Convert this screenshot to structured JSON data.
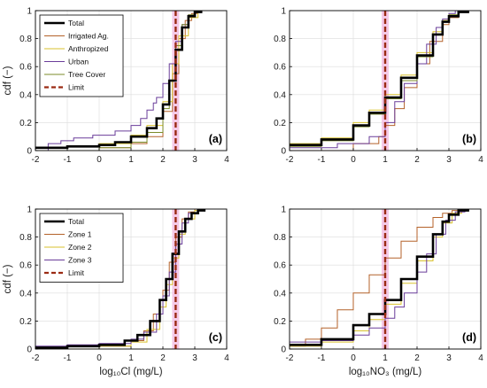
{
  "colors": {
    "total": "#000000",
    "irrigated": "#b4622a",
    "anthropized": "#d9c22e",
    "urban": "#6a3d9a",
    "tree": "#7b8b2a",
    "zone1": "#b4622a",
    "zone2": "#d9c22e",
    "zone3": "#6a3d9a",
    "limit": "#9b2b14",
    "limit_band": "#f2b8e0"
  },
  "chart_data": [
    {
      "type": "line",
      "panel_label": "(a)",
      "xlabel": "",
      "ylabel": "cdf (−)",
      "xlim": [
        -2,
        4
      ],
      "ylim": [
        0,
        1
      ],
      "xticks": [
        "-2",
        "-1",
        "0",
        "1",
        "2",
        "3",
        "4"
      ],
      "yticks": [
        "0",
        "0.2",
        "0.4",
        "0.6",
        "0.8",
        "1"
      ],
      "grid": true,
      "legend": "top-left",
      "limit": 2.4,
      "series": [
        {
          "name": "Total",
          "key": "total",
          "width": 2.6,
          "x": [
            -2,
            -1,
            0,
            0.5,
            1,
            1.5,
            1.8,
            2.0,
            2.2,
            2.4,
            2.6,
            2.8,
            3.0,
            3.2
          ],
          "y": [
            0.02,
            0.03,
            0.04,
            0.06,
            0.1,
            0.16,
            0.23,
            0.33,
            0.5,
            0.72,
            0.88,
            0.96,
            0.99,
            1.0
          ]
        },
        {
          "name": "Irrigated Ag.",
          "key": "irrigated",
          "width": 1.0,
          "x": [
            -2,
            0,
            1,
            1.5,
            2.0,
            2.3,
            2.5,
            2.7,
            2.9,
            3.1
          ],
          "y": [
            0.0,
            0.02,
            0.05,
            0.1,
            0.28,
            0.55,
            0.8,
            0.93,
            0.98,
            1.0
          ]
        },
        {
          "name": "Anthropized",
          "key": "anthropized",
          "width": 1.0,
          "x": [
            -2,
            -1,
            0,
            1,
            1.5,
            2.0,
            2.3,
            2.5,
            2.8,
            3.1
          ],
          "y": [
            0.02,
            0.03,
            0.05,
            0.11,
            0.18,
            0.35,
            0.62,
            0.82,
            0.95,
            1.0
          ]
        },
        {
          "name": "Urban",
          "key": "urban",
          "width": 1.0,
          "x": [
            -2,
            -1.6,
            -1.2,
            -0.8,
            -0.2,
            0.5,
            1.0,
            1.3,
            1.5,
            1.7,
            1.8,
            2.0,
            2.2,
            2.4,
            2.6,
            2.8,
            3.0
          ],
          "y": [
            0.0,
            0.05,
            0.07,
            0.09,
            0.11,
            0.14,
            0.18,
            0.23,
            0.29,
            0.34,
            0.38,
            0.48,
            0.62,
            0.78,
            0.9,
            0.97,
            1.0
          ]
        },
        {
          "name": "Tree Cover",
          "key": "tree",
          "width": 1.0,
          "x": [
            -2,
            0,
            1,
            1.5,
            2.0,
            2.2,
            2.4,
            2.6,
            2.8,
            3.0
          ],
          "y": [
            0.0,
            0.02,
            0.06,
            0.13,
            0.3,
            0.5,
            0.75,
            0.9,
            0.97,
            1.0
          ]
        }
      ]
    },
    {
      "type": "line",
      "panel_label": "(b)",
      "xlabel": "",
      "ylabel": "",
      "xlim": [
        -2,
        4
      ],
      "ylim": [
        0,
        1
      ],
      "xticks": [
        "-2",
        "-1",
        "0",
        "1",
        "2",
        "3",
        "4"
      ],
      "yticks": [
        "0",
        "0.2",
        "0.4",
        "0.6",
        "0.8",
        "1"
      ],
      "grid": true,
      "legend": "",
      "limit": 1.0,
      "series": [
        {
          "name": "Total",
          "key": "total",
          "width": 2.6,
          "x": [
            -2,
            -1,
            0,
            0.5,
            1.0,
            1.5,
            2.0,
            2.5,
            2.8,
            3.0,
            3.3,
            3.6
          ],
          "y": [
            0.04,
            0.08,
            0.18,
            0.27,
            0.38,
            0.52,
            0.68,
            0.83,
            0.92,
            0.96,
            0.99,
            1.0
          ]
        },
        {
          "name": "Irrigated Ag.",
          "key": "irrigated",
          "width": 1.0,
          "x": [
            -2,
            0,
            0.8,
            1.0,
            1.3,
            1.6,
            2.0,
            2.4,
            2.8,
            3.0,
            3.3,
            3.6
          ],
          "y": [
            0.0,
            0.05,
            0.1,
            0.18,
            0.3,
            0.45,
            0.62,
            0.78,
            0.9,
            0.95,
            0.99,
            1.0
          ]
        },
        {
          "name": "Anthropized",
          "key": "anthropized",
          "width": 1.0,
          "x": [
            -2,
            -1,
            0,
            0.5,
            1.0,
            1.5,
            2.0,
            2.5,
            2.8,
            3.0,
            3.3,
            3.6
          ],
          "y": [
            0.05,
            0.09,
            0.2,
            0.29,
            0.4,
            0.54,
            0.7,
            0.85,
            0.93,
            0.97,
            0.99,
            1.0
          ]
        },
        {
          "name": "Urban",
          "key": "urban",
          "width": 1.0,
          "x": [
            -2,
            -0.5,
            0.5,
            1.0,
            1.3,
            1.6,
            2.0,
            2.3,
            2.6,
            2.8,
            3.0,
            3.2
          ],
          "y": [
            0.02,
            0.05,
            0.1,
            0.2,
            0.35,
            0.48,
            0.62,
            0.76,
            0.88,
            0.94,
            0.98,
            1.0
          ]
        },
        {
          "name": "Tree Cover",
          "key": "tree",
          "width": 1.0,
          "x": [
            -2,
            -1,
            0,
            0.5,
            1.0,
            1.5,
            2.0,
            2.5,
            2.8,
            3.0,
            3.3
          ],
          "y": [
            0.03,
            0.07,
            0.17,
            0.26,
            0.37,
            0.5,
            0.67,
            0.83,
            0.92,
            0.97,
            1.0
          ]
        }
      ]
    },
    {
      "type": "line",
      "panel_label": "(c)",
      "xlabel": "log₁₀Cl (mg/L)",
      "ylabel": "cdf (−)",
      "xlim": [
        -2,
        4
      ],
      "ylim": [
        0,
        1
      ],
      "xticks": [
        "-2",
        "-1",
        "0",
        "1",
        "2",
        "3",
        "4"
      ],
      "yticks": [
        "0",
        "0.2",
        "0.4",
        "0.6",
        "0.8",
        "1"
      ],
      "grid": true,
      "legend": "top-left",
      "limit": 2.4,
      "series": [
        {
          "name": "Total",
          "key": "total",
          "width": 2.6,
          "x": [
            -2,
            -1,
            0,
            0.8,
            1.2,
            1.6,
            1.9,
            2.1,
            2.3,
            2.5,
            2.7,
            2.9,
            3.1,
            3.3
          ],
          "y": [
            0.01,
            0.02,
            0.03,
            0.06,
            0.1,
            0.2,
            0.35,
            0.5,
            0.68,
            0.84,
            0.93,
            0.97,
            0.99,
            1.0
          ]
        },
        {
          "name": "Zone 1",
          "key": "zone1",
          "width": 1.0,
          "x": [
            -2,
            0,
            1.0,
            1.4,
            1.7,
            2.0,
            2.2,
            2.4,
            2.6,
            2.8,
            3.0
          ],
          "y": [
            0.0,
            0.02,
            0.06,
            0.13,
            0.25,
            0.42,
            0.62,
            0.8,
            0.93,
            0.98,
            1.0
          ]
        },
        {
          "name": "Zone 2",
          "key": "zone2",
          "width": 1.0,
          "x": [
            -2,
            0,
            1.0,
            1.5,
            1.9,
            2.1,
            2.3,
            2.5,
            2.7,
            3.0,
            3.2
          ],
          "y": [
            0.0,
            0.02,
            0.05,
            0.14,
            0.3,
            0.46,
            0.65,
            0.82,
            0.93,
            0.99,
            1.0
          ]
        },
        {
          "name": "Zone 3",
          "key": "zone3",
          "width": 1.0,
          "x": [
            -2,
            -1,
            0,
            1.0,
            1.4,
            1.8,
            2.0,
            2.2,
            2.4,
            2.6,
            2.8,
            3.1
          ],
          "y": [
            0.02,
            0.03,
            0.04,
            0.07,
            0.12,
            0.25,
            0.38,
            0.55,
            0.75,
            0.9,
            0.97,
            1.0
          ]
        }
      ]
    },
    {
      "type": "line",
      "panel_label": "(d)",
      "xlabel": "log₁₀NO₃ (mg/L)",
      "ylabel": "",
      "xlim": [
        -2,
        4
      ],
      "ylim": [
        0,
        1
      ],
      "xticks": [
        "-2",
        "-1",
        "0",
        "1",
        "2",
        "3",
        "4"
      ],
      "yticks": [
        "0",
        "0.2",
        "0.4",
        "0.6",
        "0.8",
        "1"
      ],
      "grid": true,
      "legend": "",
      "limit": 1.0,
      "series": [
        {
          "name": "Total",
          "key": "total",
          "width": 2.6,
          "x": [
            -2,
            -1,
            0,
            0.5,
            1.0,
            1.5,
            2.0,
            2.5,
            2.8,
            3.0,
            3.3,
            3.6
          ],
          "y": [
            0.03,
            0.07,
            0.17,
            0.25,
            0.35,
            0.5,
            0.66,
            0.82,
            0.91,
            0.96,
            0.99,
            1.0
          ]
        },
        {
          "name": "Zone 1",
          "key": "zone1",
          "width": 1.0,
          "x": [
            -2,
            -1.5,
            -1,
            -0.5,
            0,
            0.5,
            1.0,
            1.5,
            2.0,
            2.5,
            2.8,
            3.1,
            3.4
          ],
          "y": [
            0.02,
            0.07,
            0.15,
            0.28,
            0.4,
            0.53,
            0.65,
            0.77,
            0.87,
            0.94,
            0.97,
            0.99,
            1.0
          ]
        },
        {
          "name": "Zone 2",
          "key": "zone2",
          "width": 1.0,
          "x": [
            -2,
            -1,
            0,
            0.5,
            1.0,
            1.5,
            2.0,
            2.5,
            2.8,
            3.1,
            3.4
          ],
          "y": [
            0.02,
            0.05,
            0.13,
            0.21,
            0.32,
            0.47,
            0.63,
            0.8,
            0.9,
            0.97,
            1.0
          ]
        },
        {
          "name": "Zone 3",
          "key": "zone3",
          "width": 1.0,
          "x": [
            -2,
            -1,
            0,
            0.5,
            1.0,
            1.3,
            1.6,
            2.0,
            2.3,
            2.6,
            2.9,
            3.2,
            3.5
          ],
          "y": [
            0.05,
            0.06,
            0.1,
            0.15,
            0.22,
            0.3,
            0.4,
            0.55,
            0.68,
            0.82,
            0.92,
            0.98,
            1.0
          ]
        }
      ]
    }
  ],
  "legends": [
    {
      "panel": 0,
      "items": [
        {
          "label": "Total",
          "key": "total",
          "width": 2.6,
          "dash": false
        },
        {
          "label": "Irrigated Ag.",
          "key": "irrigated",
          "width": 1.0,
          "dash": false
        },
        {
          "label": "Anthropized",
          "key": "anthropized",
          "width": 1.0,
          "dash": false
        },
        {
          "label": "Urban",
          "key": "urban",
          "width": 1.0,
          "dash": false
        },
        {
          "label": "Tree Cover",
          "key": "tree",
          "width": 1.0,
          "dash": false
        },
        {
          "label": "Limit",
          "key": "limit",
          "width": 2.2,
          "dash": true
        }
      ]
    },
    {
      "panel": 2,
      "items": [
        {
          "label": "Total",
          "key": "total",
          "width": 2.6,
          "dash": false
        },
        {
          "label": "Zone 1",
          "key": "zone1",
          "width": 1.0,
          "dash": false
        },
        {
          "label": "Zone 2",
          "key": "zone2",
          "width": 1.0,
          "dash": false
        },
        {
          "label": "Zone 3",
          "key": "zone3",
          "width": 1.0,
          "dash": false
        },
        {
          "label": "Limit",
          "key": "limit",
          "width": 2.2,
          "dash": true
        }
      ]
    }
  ]
}
